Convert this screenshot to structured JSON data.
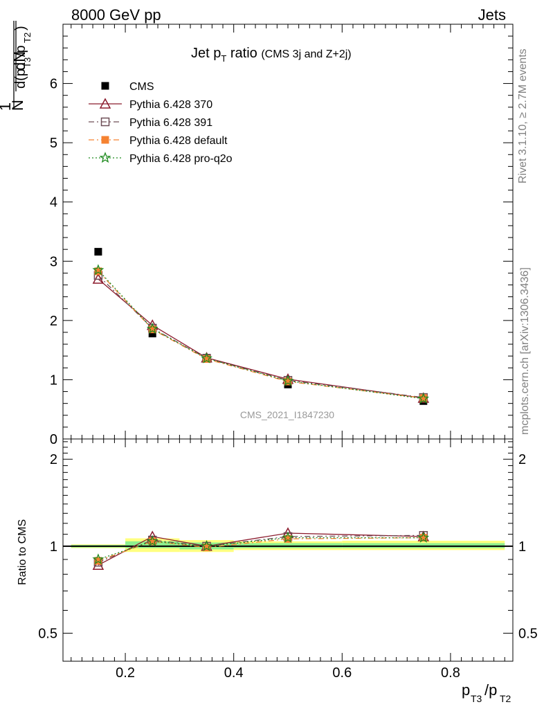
{
  "header": {
    "left": "8000 GeV pp",
    "right": "Jets"
  },
  "side": {
    "rivet": "Rivet 3.1.10, ≥ 2.7M events",
    "mcplots": "mcplots.cern.ch [arXiv:1306.3436]"
  },
  "watermark": "CMS_2021_I1847230",
  "title": {
    "main": "Jet p",
    "sub": "T",
    "rest": "ratio",
    "small": "(CMS 3j and Z+2j)"
  },
  "chart_data": [
    {
      "type": "scatter",
      "title": "Jet pT ratio (CMS 3j and Z+2j)",
      "xlabel": "pT3/pT2",
      "ylabel": "1/N dN/d(pT3/pT2)",
      "xlim": [
        0.085,
        0.915
      ],
      "ylim": [
        0,
        7
      ],
      "yticks": [
        0,
        1,
        2,
        3,
        4,
        5,
        6
      ],
      "legend_position": "top-left",
      "x": [
        0.15,
        0.25,
        0.35,
        0.5,
        0.75
      ],
      "series": [
        {
          "name": "CMS",
          "color": "#000000",
          "marker": "filled-square",
          "line": "none",
          "values": [
            3.16,
            1.78,
            1.37,
            0.92,
            0.64
          ]
        },
        {
          "name": "Pythia 6.428 370",
          "color": "#8b1a2c",
          "marker": "open-triangle",
          "line": "solid",
          "values": [
            2.7,
            1.92,
            1.37,
            1.01,
            0.69
          ]
        },
        {
          "name": "Pythia 6.428 391",
          "color": "#6d4d56",
          "marker": "open-square",
          "line": "dash-dot",
          "values": [
            2.76,
            1.87,
            1.36,
            0.99,
            0.7
          ]
        },
        {
          "name": "Pythia 6.428 default",
          "color": "#f58231",
          "marker": "filled-square",
          "line": "dash-dot",
          "values": [
            2.83,
            1.85,
            1.35,
            0.97,
            0.69
          ]
        },
        {
          "name": "Pythia 6.428 pro-q2o",
          "color": "#1e8a1e",
          "marker": "star",
          "line": "dotted",
          "values": [
            2.85,
            1.86,
            1.36,
            0.98,
            0.68
          ]
        }
      ]
    },
    {
      "type": "scatter",
      "title": "",
      "xlabel": "pT3/pT2",
      "ylabel": "Ratio to CMS",
      "xlim": [
        0.085,
        0.915
      ],
      "ylim": [
        0.4,
        2.35
      ],
      "ylog": true,
      "yticks": [
        0.5,
        1,
        2
      ],
      "xticks": [
        0.2,
        0.4,
        0.6,
        0.8
      ],
      "x": [
        0.15,
        0.25,
        0.35,
        0.5,
        0.75
      ],
      "bands": [
        {
          "x0": 0.1,
          "x1": 0.2,
          "lo": 0.99,
          "hi": 1.01,
          "lo2": 0.985,
          "hi2": 1.015
        },
        {
          "x0": 0.2,
          "x1": 0.3,
          "lo": 0.985,
          "hi": 1.04,
          "lo2": 0.955,
          "hi2": 1.065
        },
        {
          "x0": 0.3,
          "x1": 0.4,
          "lo": 0.975,
          "hi": 1.03,
          "lo2": 0.955,
          "hi2": 1.05
        },
        {
          "x0": 0.4,
          "x1": 0.6,
          "lo": 0.985,
          "hi": 1.025,
          "lo2": 0.97,
          "hi2": 1.04
        },
        {
          "x0": 0.6,
          "x1": 0.9,
          "lo": 0.985,
          "hi": 1.025,
          "lo2": 0.97,
          "hi2": 1.045
        }
      ],
      "series": [
        {
          "name": "Pythia 6.428 370",
          "color": "#8b1a2c",
          "marker": "open-triangle",
          "line": "solid",
          "values": [
            0.86,
            1.08,
            1.0,
            1.11,
            1.08
          ]
        },
        {
          "name": "Pythia 6.428 391",
          "color": "#6d4d56",
          "marker": "open-square",
          "line": "dash-dot",
          "values": [
            0.88,
            1.05,
            1.0,
            1.08,
            1.09
          ]
        },
        {
          "name": "Pythia 6.428 default",
          "color": "#f58231",
          "marker": "filled-square",
          "line": "dash-dot",
          "values": [
            0.89,
            1.04,
            0.99,
            1.06,
            1.07
          ]
        },
        {
          "name": "Pythia 6.428 pro-q2o",
          "color": "#1e8a1e",
          "marker": "star",
          "line": "dotted",
          "values": [
            0.9,
            1.04,
            1.0,
            1.07,
            1.07
          ]
        }
      ]
    }
  ]
}
